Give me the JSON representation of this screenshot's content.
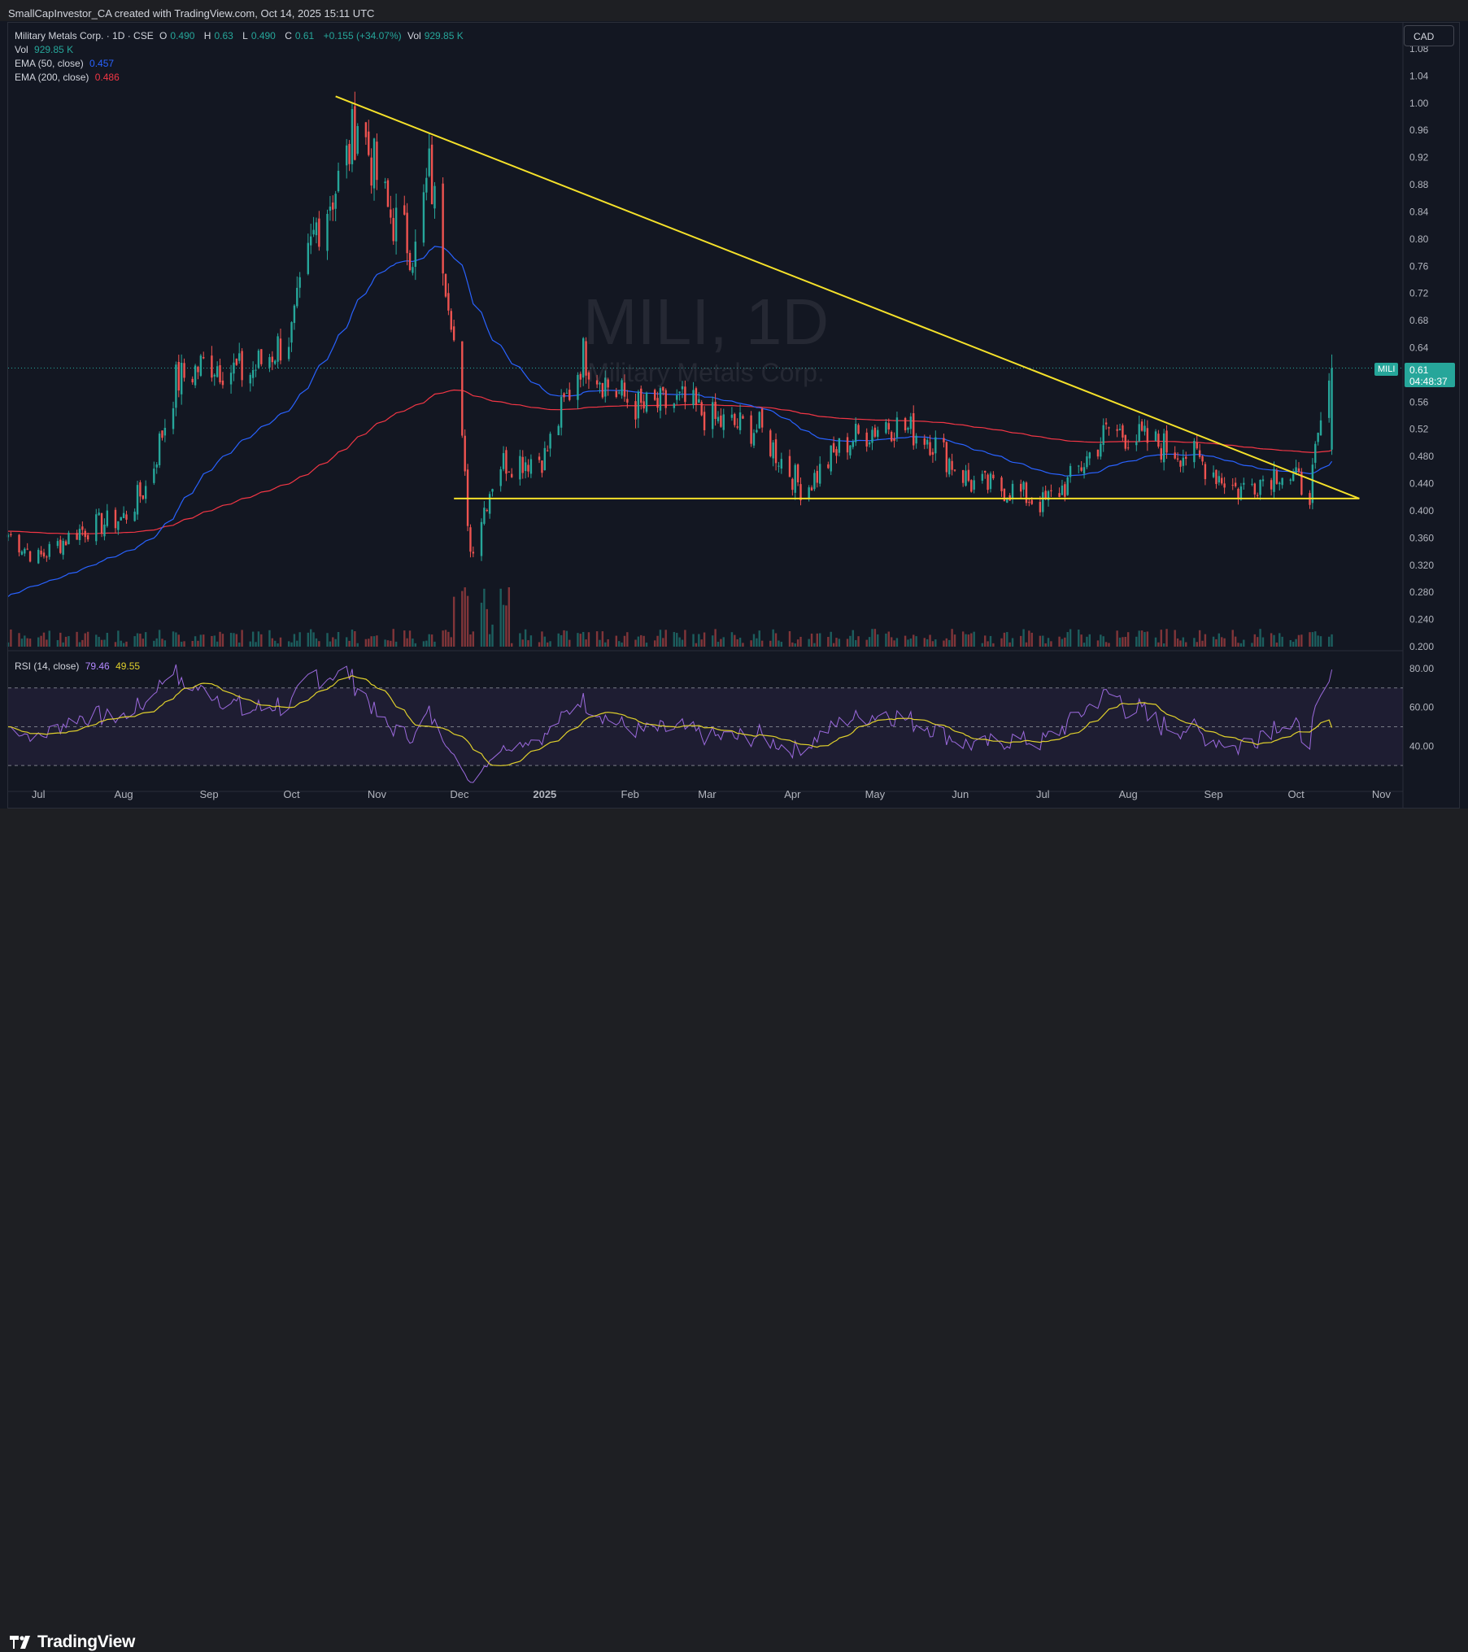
{
  "header": {
    "credit": "SmallCapInvestor_CA created with TradingView.com, Oct 14, 2025 15:11 UTC"
  },
  "legend": {
    "symbol_line": "Military Metals Corp. · 1D · CSE",
    "open_label": "O",
    "open": "0.490",
    "high_label": "H",
    "high": "0.63",
    "low_label": "L",
    "low": "0.490",
    "close_label": "C",
    "close": "0.61",
    "change": "+0.155 (+34.07%)",
    "vol_label": "Vol",
    "vol": "929.85 K",
    "vol_row_label": "Vol",
    "vol_row_value": "929.85 K",
    "ema50_label": "EMA (50, close)",
    "ema50_value": "0.457",
    "ema200_label": "EMA (200, close)",
    "ema200_value": "0.486"
  },
  "rsi_legend": {
    "label": "RSI (14, close)",
    "rsi_value": "79.46",
    "ma_value": "49.55"
  },
  "currency": "CAD",
  "price_tag": {
    "symbol": "MILI",
    "price": "0.61",
    "countdown": "04:48:37"
  },
  "watermark": {
    "ticker": "MILI, 1D",
    "name": "Military Metals Corp."
  },
  "footer": {
    "brand": "TradingView"
  },
  "colors": {
    "up": "#26a69a",
    "down": "#ef5350",
    "ema50": "#2962ff",
    "ema200": "#f23645",
    "trendlines": "#f5e12a",
    "rsi": "#9c6ade",
    "rsi_ma": "#e0d02c",
    "background": "#131722"
  },
  "chart_data": [
    {
      "type": "line",
      "description_kind": "candlestick",
      "symbol": "MILI",
      "interval": "1D",
      "price_axis_ticks": [
        "1.08",
        "1.04",
        "1.00",
        "0.96",
        "0.92",
        "0.88",
        "0.84",
        "0.80",
        "0.76",
        "0.72",
        "0.68",
        "0.64",
        "0.60",
        "0.56",
        "0.52",
        "0.480",
        "0.440",
        "0.400",
        "0.360",
        "0.320",
        "0.280",
        "0.240",
        "0.200"
      ],
      "ylim": [
        0.2,
        1.08
      ],
      "x_tick_labels": [
        "Jul",
        "Aug",
        "Sep",
        "Oct",
        "Nov",
        "Dec",
        "2025",
        "Feb",
        "Mar",
        "Apr",
        "May",
        "Jun",
        "Jul",
        "Aug",
        "Sep",
        "Oct",
        "Nov"
      ],
      "x_ticks_dates": [
        "2024-07-01",
        "2024-08-01",
        "2024-09-01",
        "2024-10-01",
        "2024-11-01",
        "2024-12-01",
        "2025-01-01",
        "2025-02-01",
        "2025-03-01",
        "2025-04-01",
        "2025-05-01",
        "2025-06-01",
        "2025-07-01",
        "2025-08-01",
        "2025-09-01",
        "2025-10-01",
        "2025-11-01"
      ],
      "series": [
        {
          "name": "Military Metals Corp.",
          "x": [
            "2024-06-20",
            "2024-07-01",
            "2024-07-15",
            "2024-08-01",
            "2024-08-10",
            "2024-08-20",
            "2024-09-01",
            "2024-09-15",
            "2024-10-01",
            "2024-10-10",
            "2024-10-20",
            "2024-10-25",
            "2024-11-05",
            "2024-11-15",
            "2024-11-20",
            "2024-11-28",
            "2024-12-05",
            "2024-12-15",
            "2025-01-01",
            "2025-01-15",
            "2025-01-25",
            "2025-02-05",
            "2025-02-20",
            "2025-03-05",
            "2025-03-20",
            "2025-04-05",
            "2025-04-20",
            "2025-05-05",
            "2025-05-20",
            "2025-06-05",
            "2025-06-20",
            "2025-07-01",
            "2025-07-10",
            "2025-07-25",
            "2025-08-10",
            "2025-08-25",
            "2025-09-10",
            "2025-09-25",
            "2025-10-06",
            "2025-10-14"
          ],
          "close": [
            0.365,
            0.33,
            0.37,
            0.39,
            0.44,
            0.59,
            0.62,
            0.6,
            0.66,
            0.82,
            0.9,
            0.98,
            0.84,
            0.78,
            0.9,
            0.7,
            0.34,
            0.47,
            0.48,
            0.63,
            0.58,
            0.55,
            0.56,
            0.53,
            0.52,
            0.43,
            0.5,
            0.53,
            0.51,
            0.44,
            0.43,
            0.41,
            0.44,
            0.52,
            0.5,
            0.48,
            0.43,
            0.46,
            0.43,
            0.61
          ]
        },
        {
          "name": "EMA (50, close)",
          "last": 0.457
        },
        {
          "name": "EMA (200, close)",
          "last": 0.486
        }
      ],
      "volume_last": "929.85 K",
      "annotations": {
        "descending_trendline": {
          "from": [
            "2024-10-17",
            1.01
          ],
          "to": [
            "2025-10-24",
            0.418
          ]
        },
        "support_line": {
          "from": [
            "2024-11-29",
            0.418
          ],
          "to": [
            "2025-10-24",
            0.418
          ]
        }
      },
      "grid": false
    },
    {
      "type": "line",
      "name": "RSI (14, close)",
      "y_axis_ticks": [
        "80.00",
        "60.00",
        "40.00"
      ],
      "ylim": [
        20,
        85
      ],
      "bands": [
        70,
        50,
        30
      ],
      "series": [
        {
          "name": "RSI",
          "last": 79.46
        },
        {
          "name": "RSI MA",
          "last": 49.55
        }
      ]
    }
  ]
}
